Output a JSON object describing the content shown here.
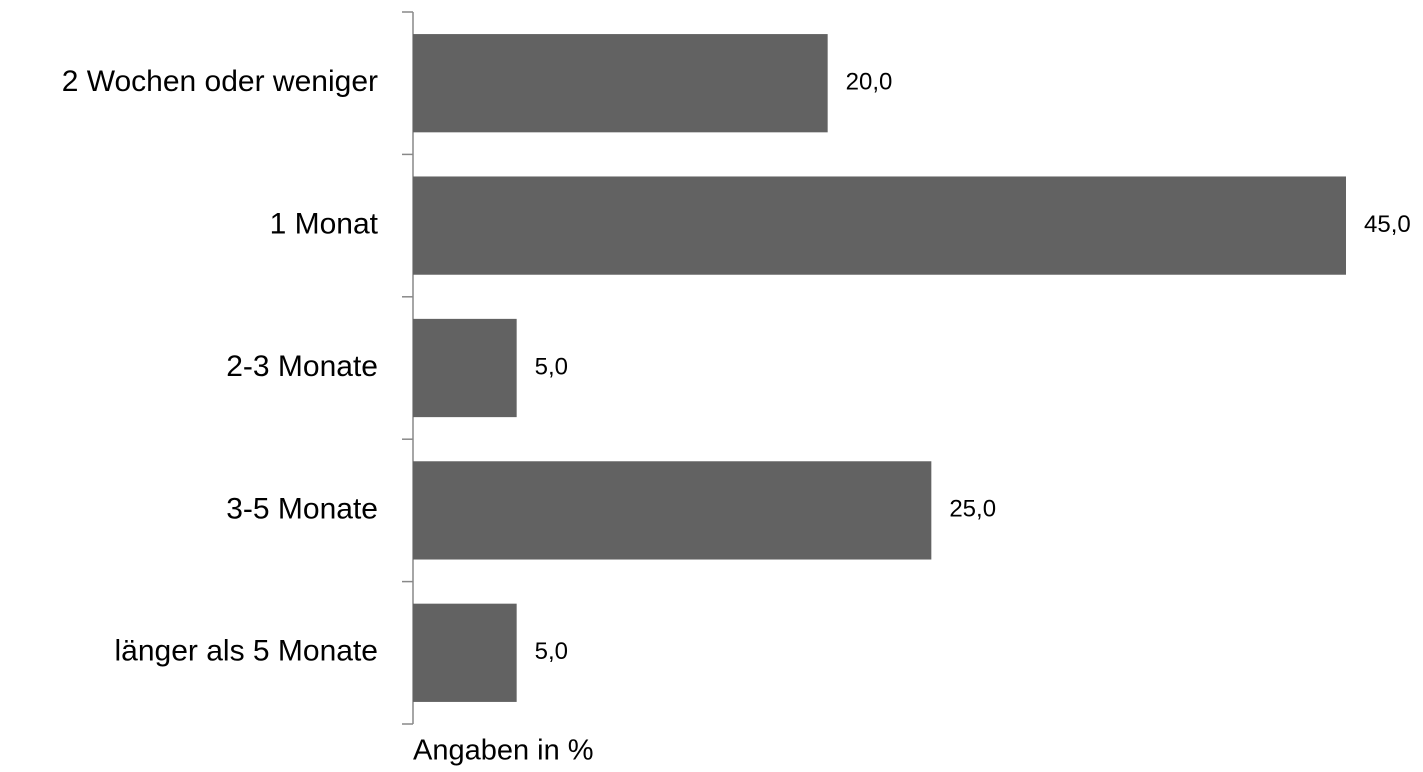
{
  "chart_data": {
    "type": "bar",
    "orientation": "horizontal",
    "categories": [
      "2 Wochen oder weniger",
      "1 Monat",
      "2-3 Monate",
      "3-5 Monate",
      "länger als 5 Monate"
    ],
    "values": [
      20,
      45,
      5,
      25,
      5
    ],
    "value_labels": [
      "20,0",
      "45,0",
      "5,0",
      "25,0",
      "5,0"
    ],
    "color": "#626262",
    "xlim": [
      0,
      45
    ],
    "x_label": "Angaben in %"
  }
}
